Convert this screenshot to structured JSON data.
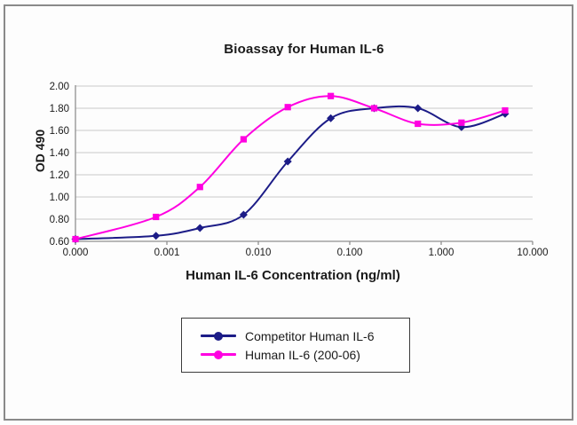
{
  "window": {
    "background": "#fdfdfd",
    "border_color": "#8a8a8a"
  },
  "chart_data": {
    "type": "line",
    "title": "Bioassay for Human IL-6",
    "xlabel": "Human IL-6 Concentration (ng/ml)",
    "ylabel": "OD 490",
    "x_scale": "log",
    "xlim_log": [
      -4,
      1
    ],
    "ylim": [
      0.6,
      2.0
    ],
    "grid": "horizontal",
    "gridline_color": "#c9c9c9",
    "axis_color": "#909090",
    "text_color": "#1a1a1a",
    "x_ticks": [
      {
        "label": "0.000",
        "log_value": -4
      },
      {
        "label": "0.001",
        "log_value": -3
      },
      {
        "label": "0.010",
        "log_value": -2
      },
      {
        "label": "0.100",
        "log_value": -1
      },
      {
        "label": "1.000",
        "log_value": 0
      },
      {
        "label": "10.000",
        "log_value": 1
      }
    ],
    "y_ticks": [
      {
        "label": "0.60",
        "value": 0.6
      },
      {
        "label": "0.80",
        "value": 0.8
      },
      {
        "label": "1.00",
        "value": 1.0
      },
      {
        "label": "1.20",
        "value": 1.2
      },
      {
        "label": "1.40",
        "value": 1.4
      },
      {
        "label": "1.60",
        "value": 1.6
      },
      {
        "label": "1.80",
        "value": 1.8
      },
      {
        "label": "2.00",
        "value": 2.0
      }
    ],
    "x": [
      0,
      0.00076,
      0.0023,
      0.0069,
      0.021,
      0.062,
      0.185,
      0.556,
      1.667,
      5.0
    ],
    "series": [
      {
        "name": "Competitor Human IL-6",
        "color": "#1c1c87",
        "marker": "diamond",
        "values": [
          0.62,
          0.65,
          0.72,
          0.84,
          1.32,
          1.71,
          1.8,
          1.8,
          1.63,
          1.75
        ]
      },
      {
        "name": "Human IL-6 (200-06)",
        "color": "#ff00e1",
        "marker": "square",
        "values": [
          0.62,
          0.82,
          1.09,
          1.52,
          1.81,
          1.91,
          1.8,
          1.66,
          1.67,
          1.78
        ]
      }
    ],
    "legend_position": "bottom-center"
  }
}
